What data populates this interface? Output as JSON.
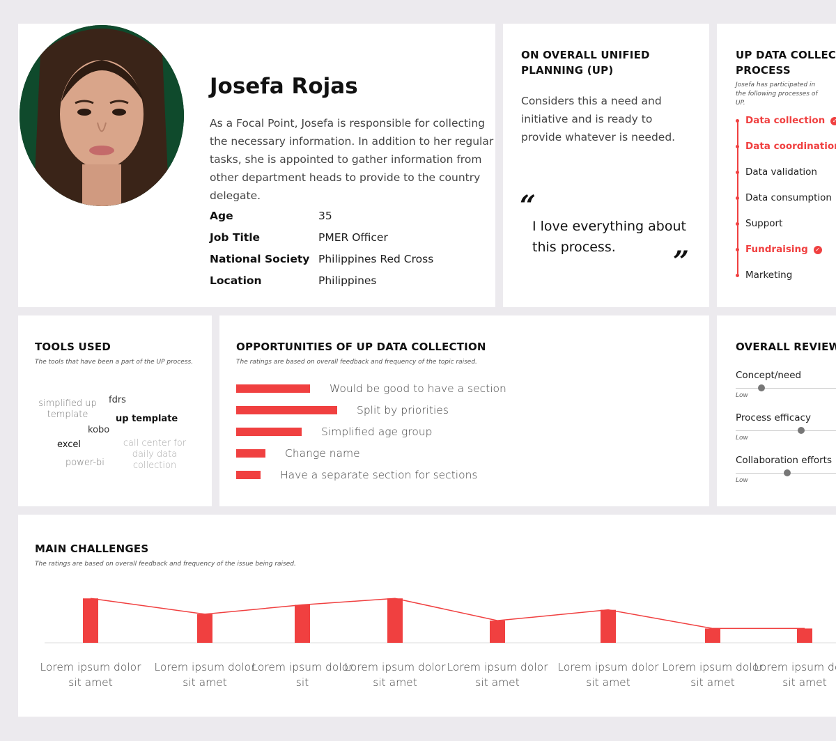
{
  "profile": {
    "name": "Josefa Rojas",
    "bio": "As a Focal Point, Josefa is responsible for collecting the necessary information. In addition to her regular tasks, she is appointed to gather information from other department heads to provide to the country delegate.",
    "facts": [
      {
        "key": "Age",
        "value": "35"
      },
      {
        "key": "Job Title",
        "value": "PMER Officer"
      },
      {
        "key": "National Society",
        "value": "Philippines Red Cross"
      },
      {
        "key": "Location",
        "value": "Philippines"
      }
    ]
  },
  "overall_up": {
    "title": "ON OVERALL UNIFIED PLANNING (UP)",
    "description": "Considers this a need and initiative and is ready to provide whatever is needed.",
    "quote": "I love everything about this process."
  },
  "process": {
    "title": "UP DATA COLLECTION PROCESS",
    "subtitle": "Josefa has participated in the following processes of UP.",
    "steps": [
      {
        "label": "Data collection",
        "active": true,
        "checked": true
      },
      {
        "label": "Data coordination",
        "active": true,
        "checked": false
      },
      {
        "label": "Data validation",
        "active": false,
        "checked": false
      },
      {
        "label": "Data consumption",
        "active": false,
        "checked": false
      },
      {
        "label": "Support",
        "active": false,
        "checked": false
      },
      {
        "label": "Fundraising",
        "active": true,
        "checked": true
      },
      {
        "label": "Marketing",
        "active": false,
        "checked": false
      }
    ]
  },
  "tools": {
    "title": "TOOLS USED",
    "subtitle": "The tools that have been a part of the UP process.",
    "items": [
      {
        "label": "simplified up template",
        "color": "#777777"
      },
      {
        "label": "fdrs",
        "color": "#333333"
      },
      {
        "label": "up template",
        "color": "#111111"
      },
      {
        "label": "kobo",
        "color": "#333333"
      },
      {
        "label": "excel",
        "color": "#111111"
      },
      {
        "label": "call center for daily data collection",
        "color": "#aaaaaa"
      },
      {
        "label": "power-bi",
        "color": "#777777"
      }
    ]
  },
  "opportunities": {
    "title": "OPPORTUNITIES OF UP DATA COLLECTION",
    "subtitle": "The ratings are based on overall feedback and frequency of the topic raised.",
    "items": [
      {
        "label": "Would be good to have a section",
        "value": 106
      },
      {
        "label": "Split by priorities",
        "value": 145
      },
      {
        "label": "Simplified age group",
        "value": 94
      },
      {
        "label": "Change name",
        "value": 42
      },
      {
        "label": "Have a separate section for sections",
        "value": 35
      }
    ]
  },
  "review": {
    "title": "OVERALL REVIEW",
    "items": [
      {
        "label": "Concept/need",
        "low_label": "Low",
        "level": 0.23
      },
      {
        "label": "Process efficacy",
        "level": 0.59,
        "low_label": "Low"
      },
      {
        "label": "Collaboration efforts",
        "level": 0.46,
        "low_label": "Low"
      }
    ]
  },
  "challenges": {
    "title": "MAIN CHALLENGES",
    "subtitle": "The ratings are based on overall feedback and frequency of the issue being raised."
  },
  "chart_data": {
    "type": "bar",
    "title": "MAIN CHALLENGES",
    "categories": [
      "Lorem ipsum dolor sit amet",
      "Lorem ipsum dolor sit amet",
      "Lorem ipsum dolor sit",
      "Lorem ipsum dolor sit amet",
      "Lorem ipsum dolor sit amet",
      "Lorem ipsum dolor sit amet",
      "Lorem ipsum dolor sit amet",
      "Lorem ipsum dolor sit amet"
    ],
    "values": [
      62,
      40,
      53,
      62,
      31,
      46,
      20,
      20
    ],
    "ylim": [
      0,
      70
    ],
    "grid": false
  },
  "colors": {
    "accent": "#f04040",
    "background": "#eceaee"
  }
}
